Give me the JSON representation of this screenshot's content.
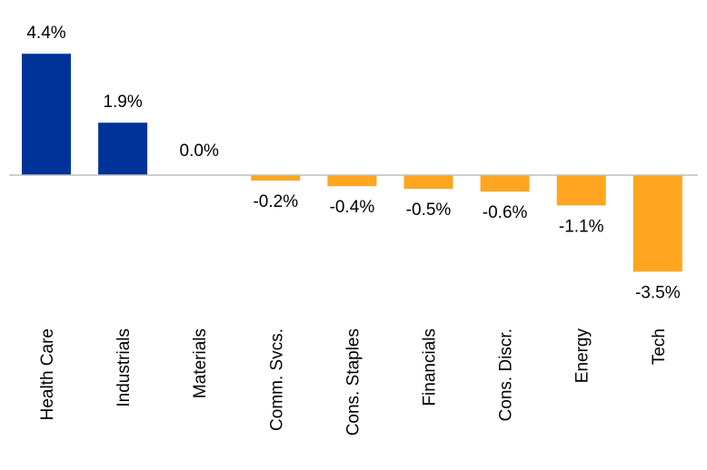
{
  "chart_data": {
    "type": "bar",
    "categories": [
      "Health Care",
      "Industrials",
      "Materials",
      "Comm. Svcs.",
      "Cons. Staples",
      "Financials",
      "Cons. Discr.",
      "Energy",
      "Tech"
    ],
    "values": [
      4.4,
      1.9,
      0.0,
      -0.2,
      -0.4,
      -0.5,
      -0.6,
      -1.1,
      -3.5
    ],
    "data_labels": [
      "4.4%",
      "1.9%",
      "0.0%",
      "-0.2%",
      "-0.4%",
      "-0.5%",
      "-0.6%",
      "-1.1%",
      "-3.5%"
    ],
    "title": "",
    "xlabel": "",
    "ylabel": "",
    "grid": false,
    "legend": "none",
    "colors": {
      "positive": "#003399",
      "negative": "#FFA51F",
      "axis": "#BFBFBF"
    }
  }
}
